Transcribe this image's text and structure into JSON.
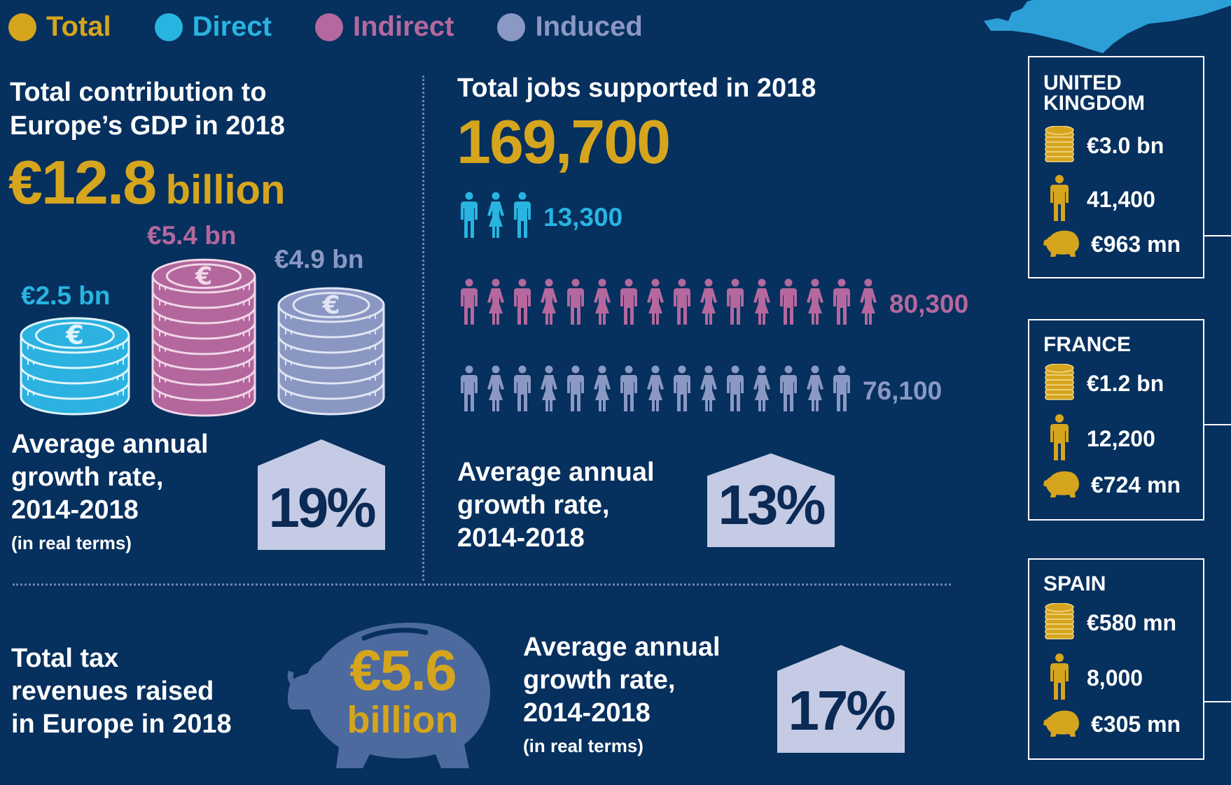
{
  "legend": [
    {
      "label": "Total",
      "color": "#d6a51e"
    },
    {
      "label": "Direct",
      "color": "#28b4e0"
    },
    {
      "label": "Indirect",
      "color": "#b4689e"
    },
    {
      "label": "Induced",
      "color": "#8b98c4"
    }
  ],
  "gdp": {
    "heading_line1": "Total contribution to",
    "heading_line2": "Europe’s GDP in 2018",
    "amount": "€12.8",
    "unit": "billion",
    "direct": "€2.5 bn",
    "indirect": "€5.4 bn",
    "induced": "€4.9 bn",
    "growth_line1": "Average annual",
    "growth_line2": "growth rate,",
    "growth_line3": "2014-2018",
    "growth_note": "(in real terms)",
    "growth_value": "19%"
  },
  "jobs": {
    "heading": "Total jobs supported in 2018",
    "total": "169,700",
    "direct": "13,300",
    "indirect": "80,300",
    "induced": "76,100",
    "direct_icons": 3,
    "indirect_icons": 16,
    "induced_icons": 15,
    "growth_line1": "Average annual",
    "growth_line2": "growth rate,",
    "growth_line3": "2014-2018",
    "growth_value": "13%"
  },
  "tax": {
    "line1": "Total tax",
    "line2": "revenues raised",
    "line3": "in Europe in 2018",
    "amount": "€5.6",
    "unit": "billion",
    "growth_line1": "Average annual",
    "growth_line2": "growth rate,",
    "growth_line3": "2014-2018",
    "growth_note": "(in real terms)",
    "growth_value": "17%"
  },
  "countries": [
    {
      "name_line1": "UNITED",
      "name_line2": "KINGDOM",
      "gdp": "€3.0 bn",
      "jobs": "41,400",
      "tax": "€963 mn"
    },
    {
      "name_line1": "FRANCE",
      "name_line2": "",
      "gdp": "€1.2 bn",
      "jobs": "12,200",
      "tax": "€724 mn"
    },
    {
      "name_line1": "SPAIN",
      "name_line2": "",
      "gdp": "€580 mn",
      "jobs": "8,000",
      "tax": "€305 mn"
    }
  ]
}
